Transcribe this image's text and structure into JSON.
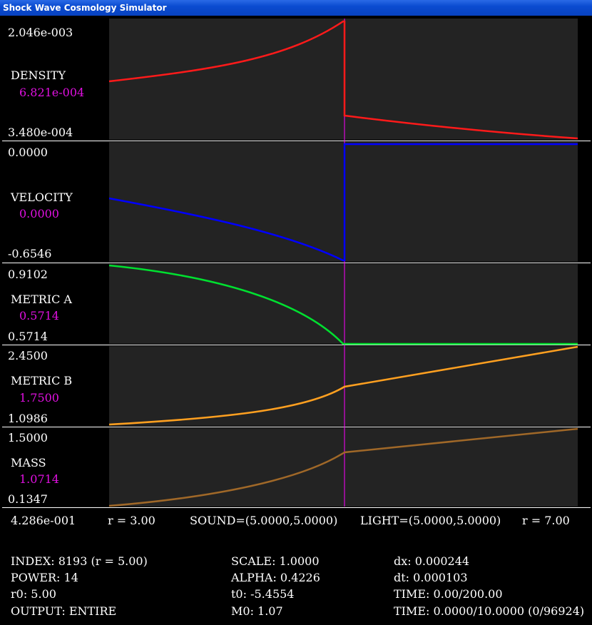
{
  "window": {
    "title": "Shock Wave Cosmology Simulator"
  },
  "panels": [
    {
      "name": "DENSITY",
      "max": "2.046e-003",
      "current": "6.821e-004",
      "min": "3.480e-004",
      "color": "#ff1a1a"
    },
    {
      "name": "VELOCITY",
      "max": "0.0000",
      "current": "0.0000",
      "min": "-0.6546",
      "color": "#0000ff"
    },
    {
      "name": "METRIC A",
      "max": "0.9102",
      "current": "0.5714",
      "min": "0.5714",
      "color": "#00e030"
    },
    {
      "name": "METRIC B",
      "max": "2.4500",
      "current": "1.7500",
      "min": "1.0986",
      "color": "#ffa020"
    },
    {
      "name": "MASS",
      "max": "1.5000",
      "current": "1.0714",
      "min": "0.1347",
      "color": "#a06828"
    }
  ],
  "axis": {
    "left_value": "4.286e-001",
    "r_start": "r = 3.00",
    "sound": "SOUND=(5.0000,5.0000)",
    "light": "LIGHT=(5.0000,5.0000)",
    "r_end": "r = 7.00"
  },
  "marker_color": "#ff00ff",
  "info": {
    "index": "INDEX: 8193 (r = 5.00)",
    "power": "POWER: 14",
    "r0": "r0: 5.00",
    "output": "OUTPUT: ENTIRE",
    "scale": "SCALE: 1.0000",
    "alpha": "ALPHA: 0.4226",
    "t0": "t0: -5.4554",
    "m0": "M0: 1.07",
    "dx": "dx: 0.000244",
    "dt": "dt: 0.000103",
    "time1": "TIME: 0.00/200.00",
    "time2": "TIME: 0.0000/10.0000 (0/96924)"
  }
}
